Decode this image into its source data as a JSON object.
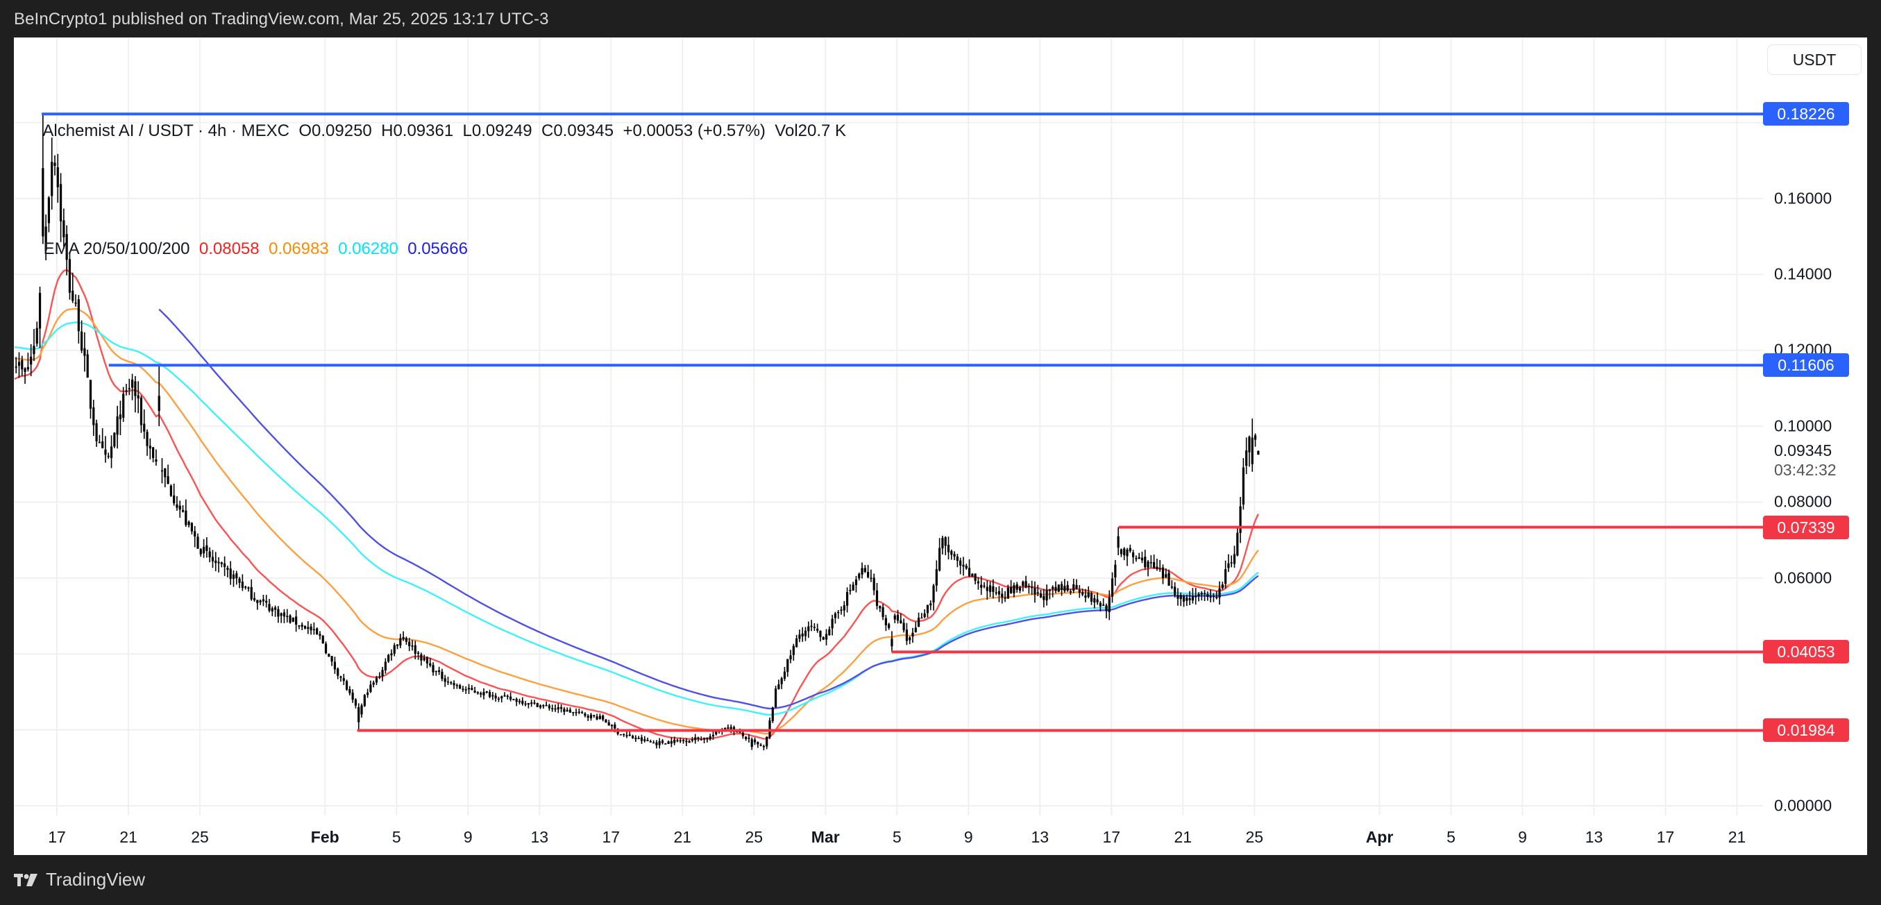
{
  "header": {
    "caption": "BeInCrypto1 published on TradingView.com, Mar 25, 2025 13:17 UTC-3"
  },
  "legend": {
    "symbol_line": "Alchemist AI / USDT · 4h · MEXC",
    "open": "O0.09250",
    "high": "H0.09361",
    "low": "L0.09249",
    "close": "C0.09345",
    "change": "+0.00053 (+0.57%)",
    "volume": "Vol20.7 K",
    "ema_label": "EMA 20/50/100/200",
    "ema_values": [
      {
        "period": "20",
        "value": "0.08058",
        "color": "#ff1e1e"
      },
      {
        "period": "50",
        "value": "0.06983",
        "color": "#ff8c00"
      },
      {
        "period": "100",
        "value": "0.06280",
        "color": "#00e5ff"
      },
      {
        "period": "200",
        "value": "0.05666",
        "color": "#1a1aff"
      }
    ]
  },
  "currency_button": {
    "label": "USDT"
  },
  "price_axis": {
    "ticks": [
      "0.16000",
      "0.14000",
      "0.12000",
      "0.10000",
      "0.08000",
      "0.06000",
      "0.00000"
    ],
    "tick_values": [
      0.16,
      0.14,
      0.12,
      0.1,
      0.08,
      0.06,
      0.0
    ],
    "last_price": "0.09345",
    "countdown": "03:42:32"
  },
  "time_axis": {
    "ticks": [
      {
        "label": "17",
        "day": 0,
        "bold": false
      },
      {
        "label": "21",
        "day": 4,
        "bold": false
      },
      {
        "label": "25",
        "day": 8,
        "bold": false
      },
      {
        "label": "Feb",
        "day": 15,
        "bold": true
      },
      {
        "label": "5",
        "day": 19,
        "bold": false
      },
      {
        "label": "9",
        "day": 23,
        "bold": false
      },
      {
        "label": "13",
        "day": 27,
        "bold": false
      },
      {
        "label": "17",
        "day": 31,
        "bold": false
      },
      {
        "label": "21",
        "day": 35,
        "bold": false
      },
      {
        "label": "25",
        "day": 39,
        "bold": false
      },
      {
        "label": "Mar",
        "day": 43,
        "bold": true
      },
      {
        "label": "5",
        "day": 47,
        "bold": false
      },
      {
        "label": "9",
        "day": 51,
        "bold": false
      },
      {
        "label": "13",
        "day": 55,
        "bold": false
      },
      {
        "label": "17",
        "day": 59,
        "bold": false
      },
      {
        "label": "21",
        "day": 63,
        "bold": false
      },
      {
        "label": "25",
        "day": 67,
        "bold": false
      },
      {
        "label": "Apr",
        "day": 74,
        "bold": true
      },
      {
        "label": "5",
        "day": 78,
        "bold": false
      },
      {
        "label": "9",
        "day": 82,
        "bold": false
      },
      {
        "label": "13",
        "day": 86,
        "bold": false
      },
      {
        "label": "17",
        "day": 90,
        "bold": false
      },
      {
        "label": "21",
        "day": 94,
        "bold": false
      }
    ]
  },
  "levels": [
    {
      "value": 0.18226,
      "label": "0.18226",
      "color": "#2962ff",
      "start_day": -0.85,
      "kind": "resistance"
    },
    {
      "value": 0.11606,
      "label": "0.11606",
      "color": "#2962ff",
      "start_day": 2.9,
      "kind": "resistance"
    },
    {
      "value": 0.07339,
      "label": "0.07339",
      "color": "#f23645",
      "start_day": 59.4,
      "kind": "support"
    },
    {
      "value": 0.04053,
      "label": "0.04053",
      "color": "#f23645",
      "start_day": 46.7,
      "kind": "support"
    },
    {
      "value": 0.01984,
      "label": "0.01984",
      "color": "#f23645",
      "start_day": 16.8,
      "kind": "support"
    }
  ],
  "footer": {
    "brand": "TradingView"
  },
  "colors": {
    "background": "#1f1f1f",
    "panel": "#ffffff",
    "grid": "#f0f0f0",
    "candle": "#000000",
    "resistance": "#2962ff",
    "support": "#f23645"
  },
  "chart_data": {
    "type": "candlestick",
    "title": "Alchemist AI / USDT · 4h · MEXC",
    "xlabel": "",
    "ylabel": "USDT",
    "ylim": [
      0,
      0.19
    ],
    "x_range": [
      "Jan 15 2025",
      "Apr 23 2025"
    ],
    "grid": true,
    "legend_position": "top-left",
    "ohlc_last": {
      "open": 0.0925,
      "high": 0.09361,
      "low": 0.09249,
      "close": 0.09345,
      "change": 0.00053,
      "change_pct": 0.57,
      "volume": "20.7K"
    },
    "close_path": {
      "description": "Approximate closing-price path sampled by day offset from Jan 17 (day 0)",
      "days": [
        -2.4,
        -1.8,
        -1.2,
        -0.8,
        -0.5,
        -0.2,
        0.3,
        0.7,
        1.2,
        1.8,
        2.3,
        2.8,
        3.2,
        3.6,
        4.2,
        4.9,
        5.3,
        5.8,
        6.5,
        7.2,
        8.0,
        9.0,
        10.0,
        11.0,
        12.0,
        13.0,
        14.0,
        14.8,
        15.3,
        16.0,
        16.6,
        16.9,
        17.3,
        18.0,
        18.6,
        19.3,
        20.0,
        20.8,
        21.5,
        22.5,
        23.5,
        24.5,
        25.5,
        26.5,
        27.5,
        28.5,
        29.5,
        30.5,
        31.5,
        32.5,
        33.5,
        34.5,
        35.5,
        36.5,
        37.5,
        38.5,
        39.2,
        39.6,
        40.2,
        40.9,
        41.5,
        42.2,
        42.8,
        43.6,
        44.4,
        45.0,
        45.5,
        46.0,
        46.5,
        47.0,
        47.6,
        48.2,
        48.9,
        49.5,
        50.3,
        51.0,
        52.0,
        53.0,
        54.0,
        55.0,
        56.0,
        57.0,
        58.0,
        58.8,
        59.4,
        60.0,
        61.0,
        62.0,
        63.0,
        63.8,
        64.5,
        65.0,
        65.5,
        66.0,
        66.4,
        66.8,
        67.2
      ],
      "close": [
        0.118,
        0.113,
        0.122,
        0.145,
        0.16,
        0.175,
        0.152,
        0.137,
        0.128,
        0.108,
        0.095,
        0.09,
        0.097,
        0.105,
        0.112,
        0.098,
        0.093,
        0.088,
        0.082,
        0.075,
        0.068,
        0.063,
        0.06,
        0.055,
        0.052,
        0.049,
        0.047,
        0.044,
        0.038,
        0.033,
        0.027,
        0.024,
        0.03,
        0.034,
        0.04,
        0.045,
        0.041,
        0.037,
        0.034,
        0.031,
        0.03,
        0.029,
        0.028,
        0.027,
        0.026,
        0.025,
        0.024,
        0.023,
        0.019,
        0.0175,
        0.0165,
        0.017,
        0.0175,
        0.018,
        0.021,
        0.018,
        0.016,
        0.015,
        0.03,
        0.038,
        0.045,
        0.047,
        0.044,
        0.05,
        0.057,
        0.062,
        0.06,
        0.052,
        0.047,
        0.05,
        0.043,
        0.049,
        0.054,
        0.07,
        0.064,
        0.061,
        0.057,
        0.056,
        0.058,
        0.055,
        0.057,
        0.058,
        0.054,
        0.052,
        0.068,
        0.066,
        0.064,
        0.06,
        0.054,
        0.056,
        0.054,
        0.056,
        0.063,
        0.068,
        0.09,
        0.097,
        0.0935
      ]
    },
    "series": [
      {
        "name": "EMA 20",
        "color": "#ff1e1e",
        "last": 0.08058
      },
      {
        "name": "EMA 50",
        "color": "#ff8c00",
        "last": 0.06983
      },
      {
        "name": "EMA 100",
        "color": "#00e5ff",
        "last": 0.0628
      },
      {
        "name": "EMA 200",
        "color": "#1a1aff",
        "last": 0.05666,
        "visible_from_day": 5.7
      }
    ],
    "horizontal_levels": [
      0.18226,
      0.11606,
      0.07339,
      0.04053,
      0.01984
    ],
    "annotations": [
      "Resistance 0.18226 (blue)",
      "Resistance 0.11606 (blue)",
      "Support 0.07339 (red)",
      "Support 0.04053 (red)",
      "Support 0.01984 (red)"
    ]
  }
}
